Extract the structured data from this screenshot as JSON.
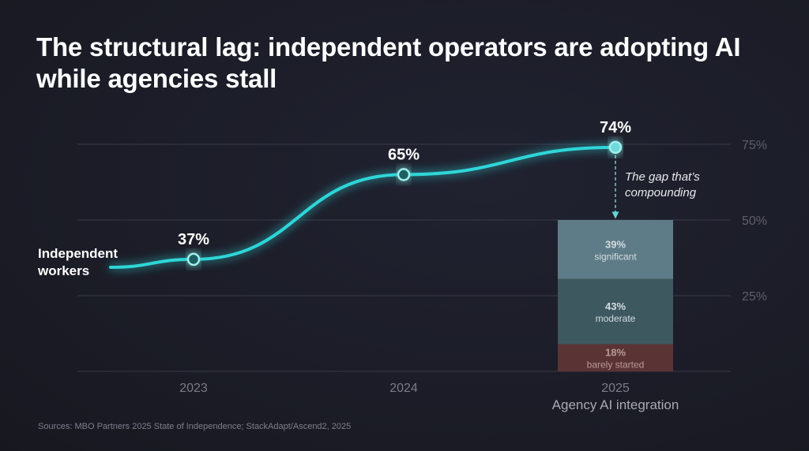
{
  "title": "The structural lag: independent operators are adopting AI while agencies stall",
  "source": "Sources: MBO Partners 2025 State of Independence; StackAdapt/Ascend2, 2025",
  "colors": {
    "line": "#2fd6d8",
    "significant": "#5e7c87",
    "moderate": "#3e5860",
    "barely_started": "#5a3434",
    "grid": "#383a47"
  },
  "chart_data": {
    "type": "line",
    "categories": [
      "2023",
      "2024",
      "2025"
    ],
    "ylim": [
      0,
      75
    ],
    "yticks": [
      "75%",
      "50%",
      "25%"
    ],
    "ytick_values": [
      75,
      50,
      25
    ],
    "grid": true,
    "series": [
      {
        "name": "Independent workers",
        "name_lines": [
          "Independent",
          "workers"
        ],
        "values": [
          37,
          65,
          74
        ],
        "labels": [
          "37%",
          "65%",
          "74%"
        ]
      }
    ],
    "annotation": {
      "lines": [
        "The gap that’s",
        "compounding"
      ]
    },
    "stacked_bar": {
      "category": "2025",
      "label": "Agency AI integration",
      "segments": [
        {
          "value": 39,
          "label": "39%",
          "name": "significant"
        },
        {
          "value": 43,
          "label": "43%",
          "name": "moderate"
        },
        {
          "value": 18,
          "label": "18%",
          "name": "barely started"
        }
      ]
    }
  }
}
